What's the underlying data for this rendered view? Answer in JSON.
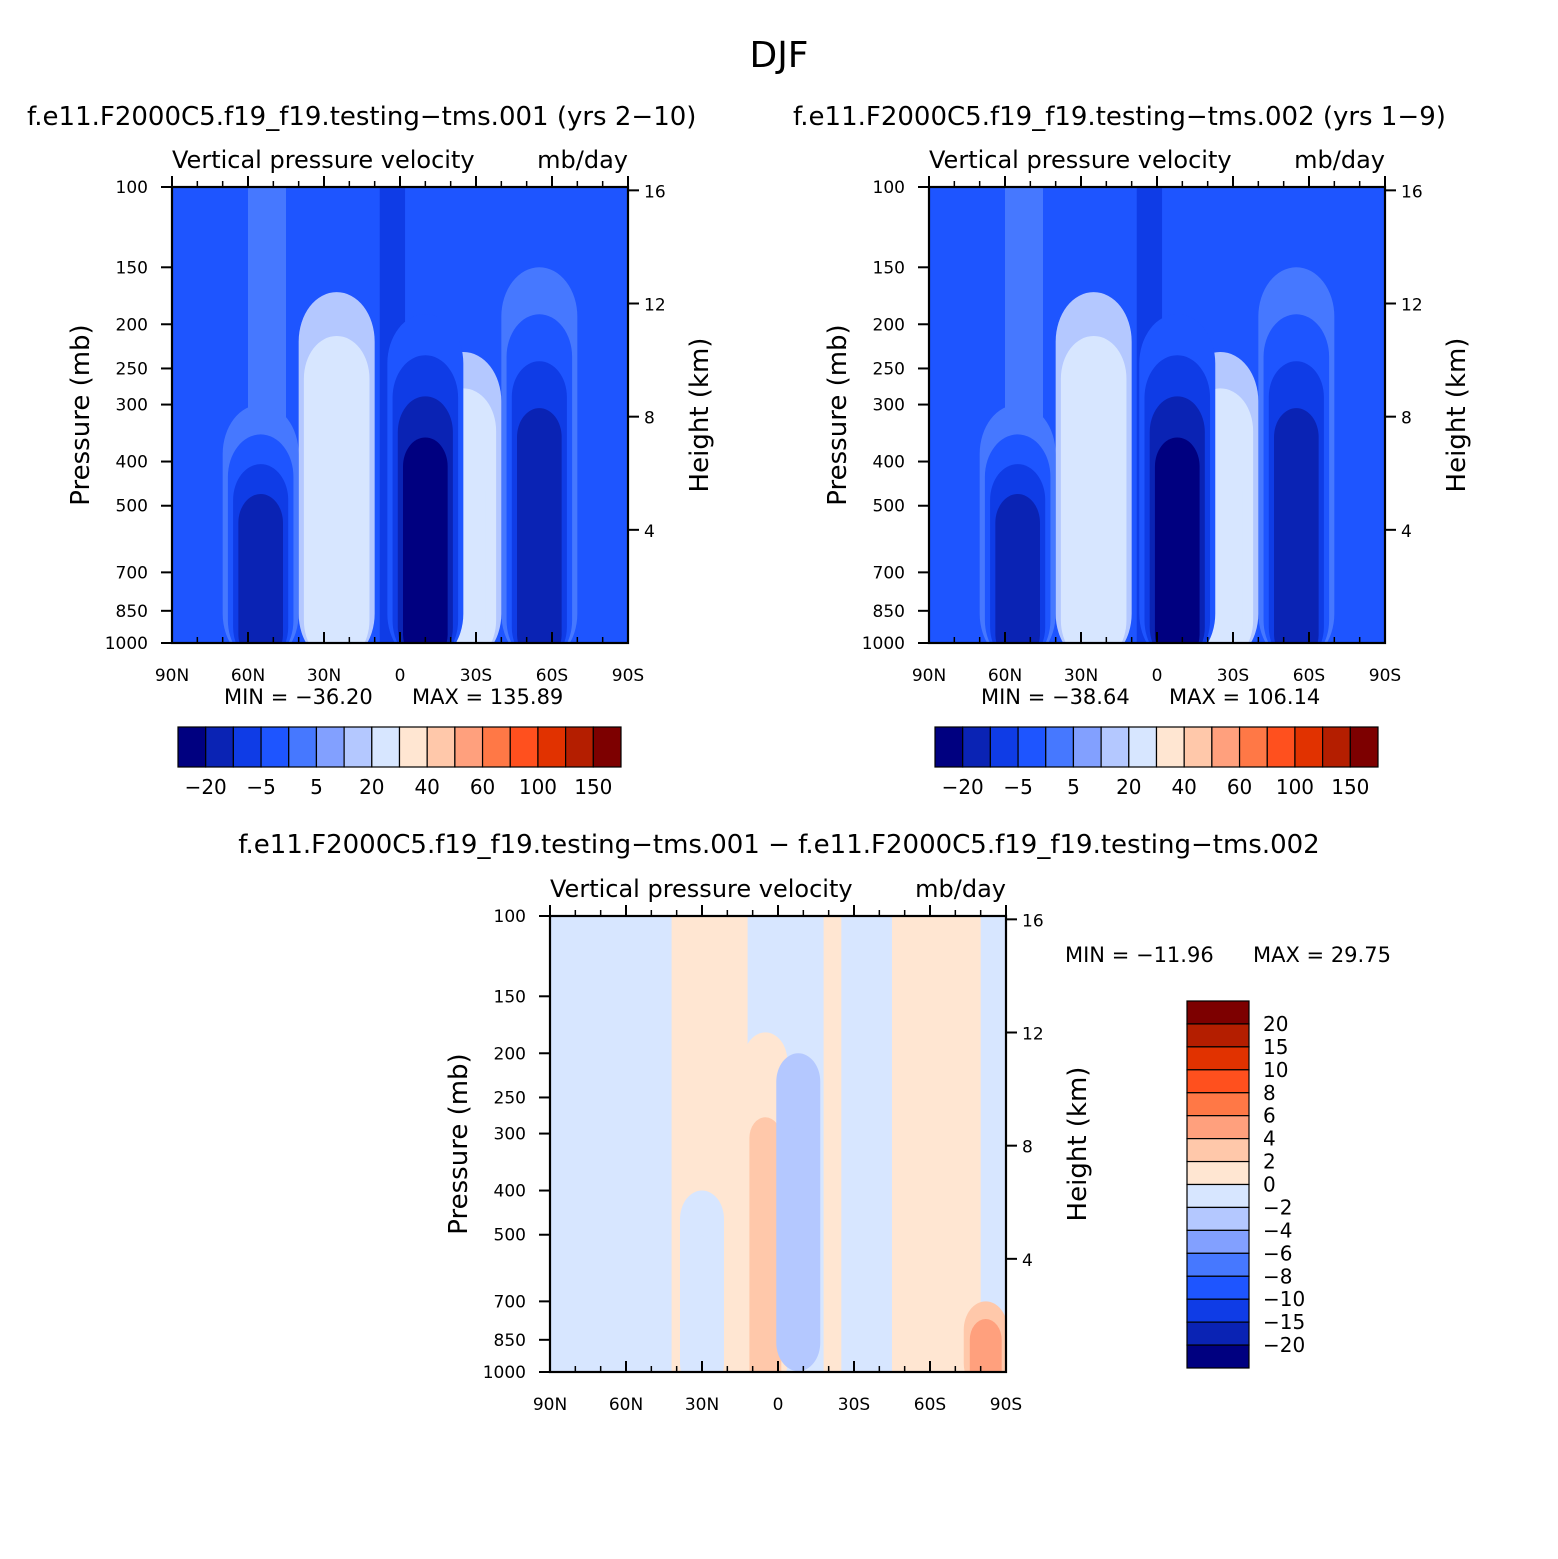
{
  "title": "DJF",
  "colors": {
    "diverging": [
      "#000080",
      "#0a23b4",
      "#0f3ce6",
      "#1e55ff",
      "#4678ff",
      "#82a0ff",
      "#b4c8ff",
      "#d7e6ff",
      "#ffe6d2",
      "#ffc8aa",
      "#ffa07d",
      "#ff7846",
      "#ff501e",
      "#e13200",
      "#b41e00",
      "#7d0000"
    ]
  },
  "chart_data": [
    {
      "type": "heatmap",
      "title": "f.e11.F2000C5.f19_f19.testing−tms.001 (yrs 2−10)",
      "subtitle_left": "Vertical pressure velocity",
      "subtitle_right": "mb/day",
      "xlabel": "",
      "ylabel": "Pressure (mb)",
      "ylabel_right": "Height (km)",
      "x_ticks": [
        "90N",
        "60N",
        "30N",
        "0",
        "30S",
        "60S",
        "90S"
      ],
      "x_tick_values": [
        90,
        60,
        30,
        0,
        -30,
        -60,
        -90
      ],
      "xlim": [
        90,
        -90
      ],
      "y_ticks": [
        100,
        150,
        200,
        250,
        300,
        400,
        500,
        700,
        850,
        1000
      ],
      "ylim": [
        1000,
        100
      ],
      "y_scale": "log",
      "y_right_ticks": [
        16,
        12,
        8,
        4
      ],
      "min_label": "MIN = −36.20",
      "max_label": "MAX = 135.89",
      "colorbar_orientation": "horizontal",
      "colorbar_labels": [
        "−20",
        "−5",
        "5",
        "20",
        "40",
        "60",
        "100",
        "150"
      ],
      "features": [
        {
          "lat": -55,
          "min_value": -15,
          "p_low": 1000,
          "p_high": 150
        },
        {
          "lat": -25,
          "min_value": 20,
          "p_low": 1000,
          "p_high": 230
        },
        {
          "lat": -10,
          "min_value": -20,
          "p_low": 1000,
          "p_high": 190
        },
        {
          "lat": 25,
          "min_value": 20,
          "p_low": 1000,
          "p_high": 170
        },
        {
          "lat": 55,
          "min_value": -15,
          "p_low": 1000,
          "p_high": 300
        }
      ]
    },
    {
      "type": "heatmap",
      "title": "f.e11.F2000C5.f19_f19.testing−tms.002 (yrs 1−9)",
      "subtitle_left": "Vertical pressure velocity",
      "subtitle_right": "mb/day",
      "xlabel": "",
      "ylabel": "Pressure (mb)",
      "ylabel_right": "Height (km)",
      "x_ticks": [
        "90N",
        "60N",
        "30N",
        "0",
        "30S",
        "60S",
        "90S"
      ],
      "x_tick_values": [
        90,
        60,
        30,
        0,
        -30,
        -60,
        -90
      ],
      "xlim": [
        90,
        -90
      ],
      "y_ticks": [
        100,
        150,
        200,
        250,
        300,
        400,
        500,
        700,
        850,
        1000
      ],
      "ylim": [
        1000,
        100
      ],
      "y_scale": "log",
      "y_right_ticks": [
        16,
        12,
        8,
        4
      ],
      "min_label": "MIN = −38.64",
      "max_label": "MAX = 106.14",
      "colorbar_orientation": "horizontal",
      "colorbar_labels": [
        "−20",
        "−5",
        "5",
        "20",
        "40",
        "60",
        "100",
        "150"
      ],
      "features": [
        {
          "lat": -55,
          "min_value": -15,
          "p_low": 1000,
          "p_high": 150
        },
        {
          "lat": -25,
          "min_value": 20,
          "p_low": 1000,
          "p_high": 230
        },
        {
          "lat": -8,
          "min_value": -20,
          "p_low": 1000,
          "p_high": 190
        },
        {
          "lat": 25,
          "min_value": 20,
          "p_low": 1000,
          "p_high": 170
        },
        {
          "lat": 55,
          "min_value": -15,
          "p_low": 1000,
          "p_high": 300
        }
      ]
    },
    {
      "type": "heatmap",
      "title": "f.e11.F2000C5.f19_f19.testing−tms.001 − f.e11.F2000C5.f19_f19.testing−tms.002",
      "subtitle_left": "Vertical pressure velocity",
      "subtitle_right": "mb/day",
      "xlabel": "",
      "ylabel": "Pressure (mb)",
      "ylabel_right": "Height (km)",
      "x_ticks": [
        "90N",
        "60N",
        "30N",
        "0",
        "30S",
        "60S",
        "90S"
      ],
      "x_tick_values": [
        90,
        60,
        30,
        0,
        -30,
        -60,
        -90
      ],
      "xlim": [
        90,
        -90
      ],
      "y_ticks": [
        100,
        150,
        200,
        250,
        300,
        400,
        500,
        700,
        850,
        1000
      ],
      "ylim": [
        1000,
        100
      ],
      "y_scale": "log",
      "y_right_ticks": [
        16,
        12,
        8,
        4
      ],
      "min_label": "MIN = −11.96",
      "max_label": "MAX =  29.75",
      "colorbar_orientation": "vertical",
      "colorbar_labels": [
        "20",
        "15",
        "10",
        "8",
        "6",
        "4",
        "2",
        "0",
        "−2",
        "−4",
        "−6",
        "−8",
        "−10",
        "−15",
        "−20"
      ],
      "features": [
        {
          "lat": 5,
          "min_value": 4,
          "p_low": 1000,
          "p_high": 180
        },
        {
          "lat": -8,
          "min_value": -4,
          "p_low": 900,
          "p_high": 200
        },
        {
          "lat": 30,
          "min_value": -2,
          "p_low": 1000,
          "p_high": 400
        },
        {
          "lat": -82,
          "min_value": 6,
          "p_low": 1000,
          "p_high": 700
        }
      ]
    }
  ]
}
